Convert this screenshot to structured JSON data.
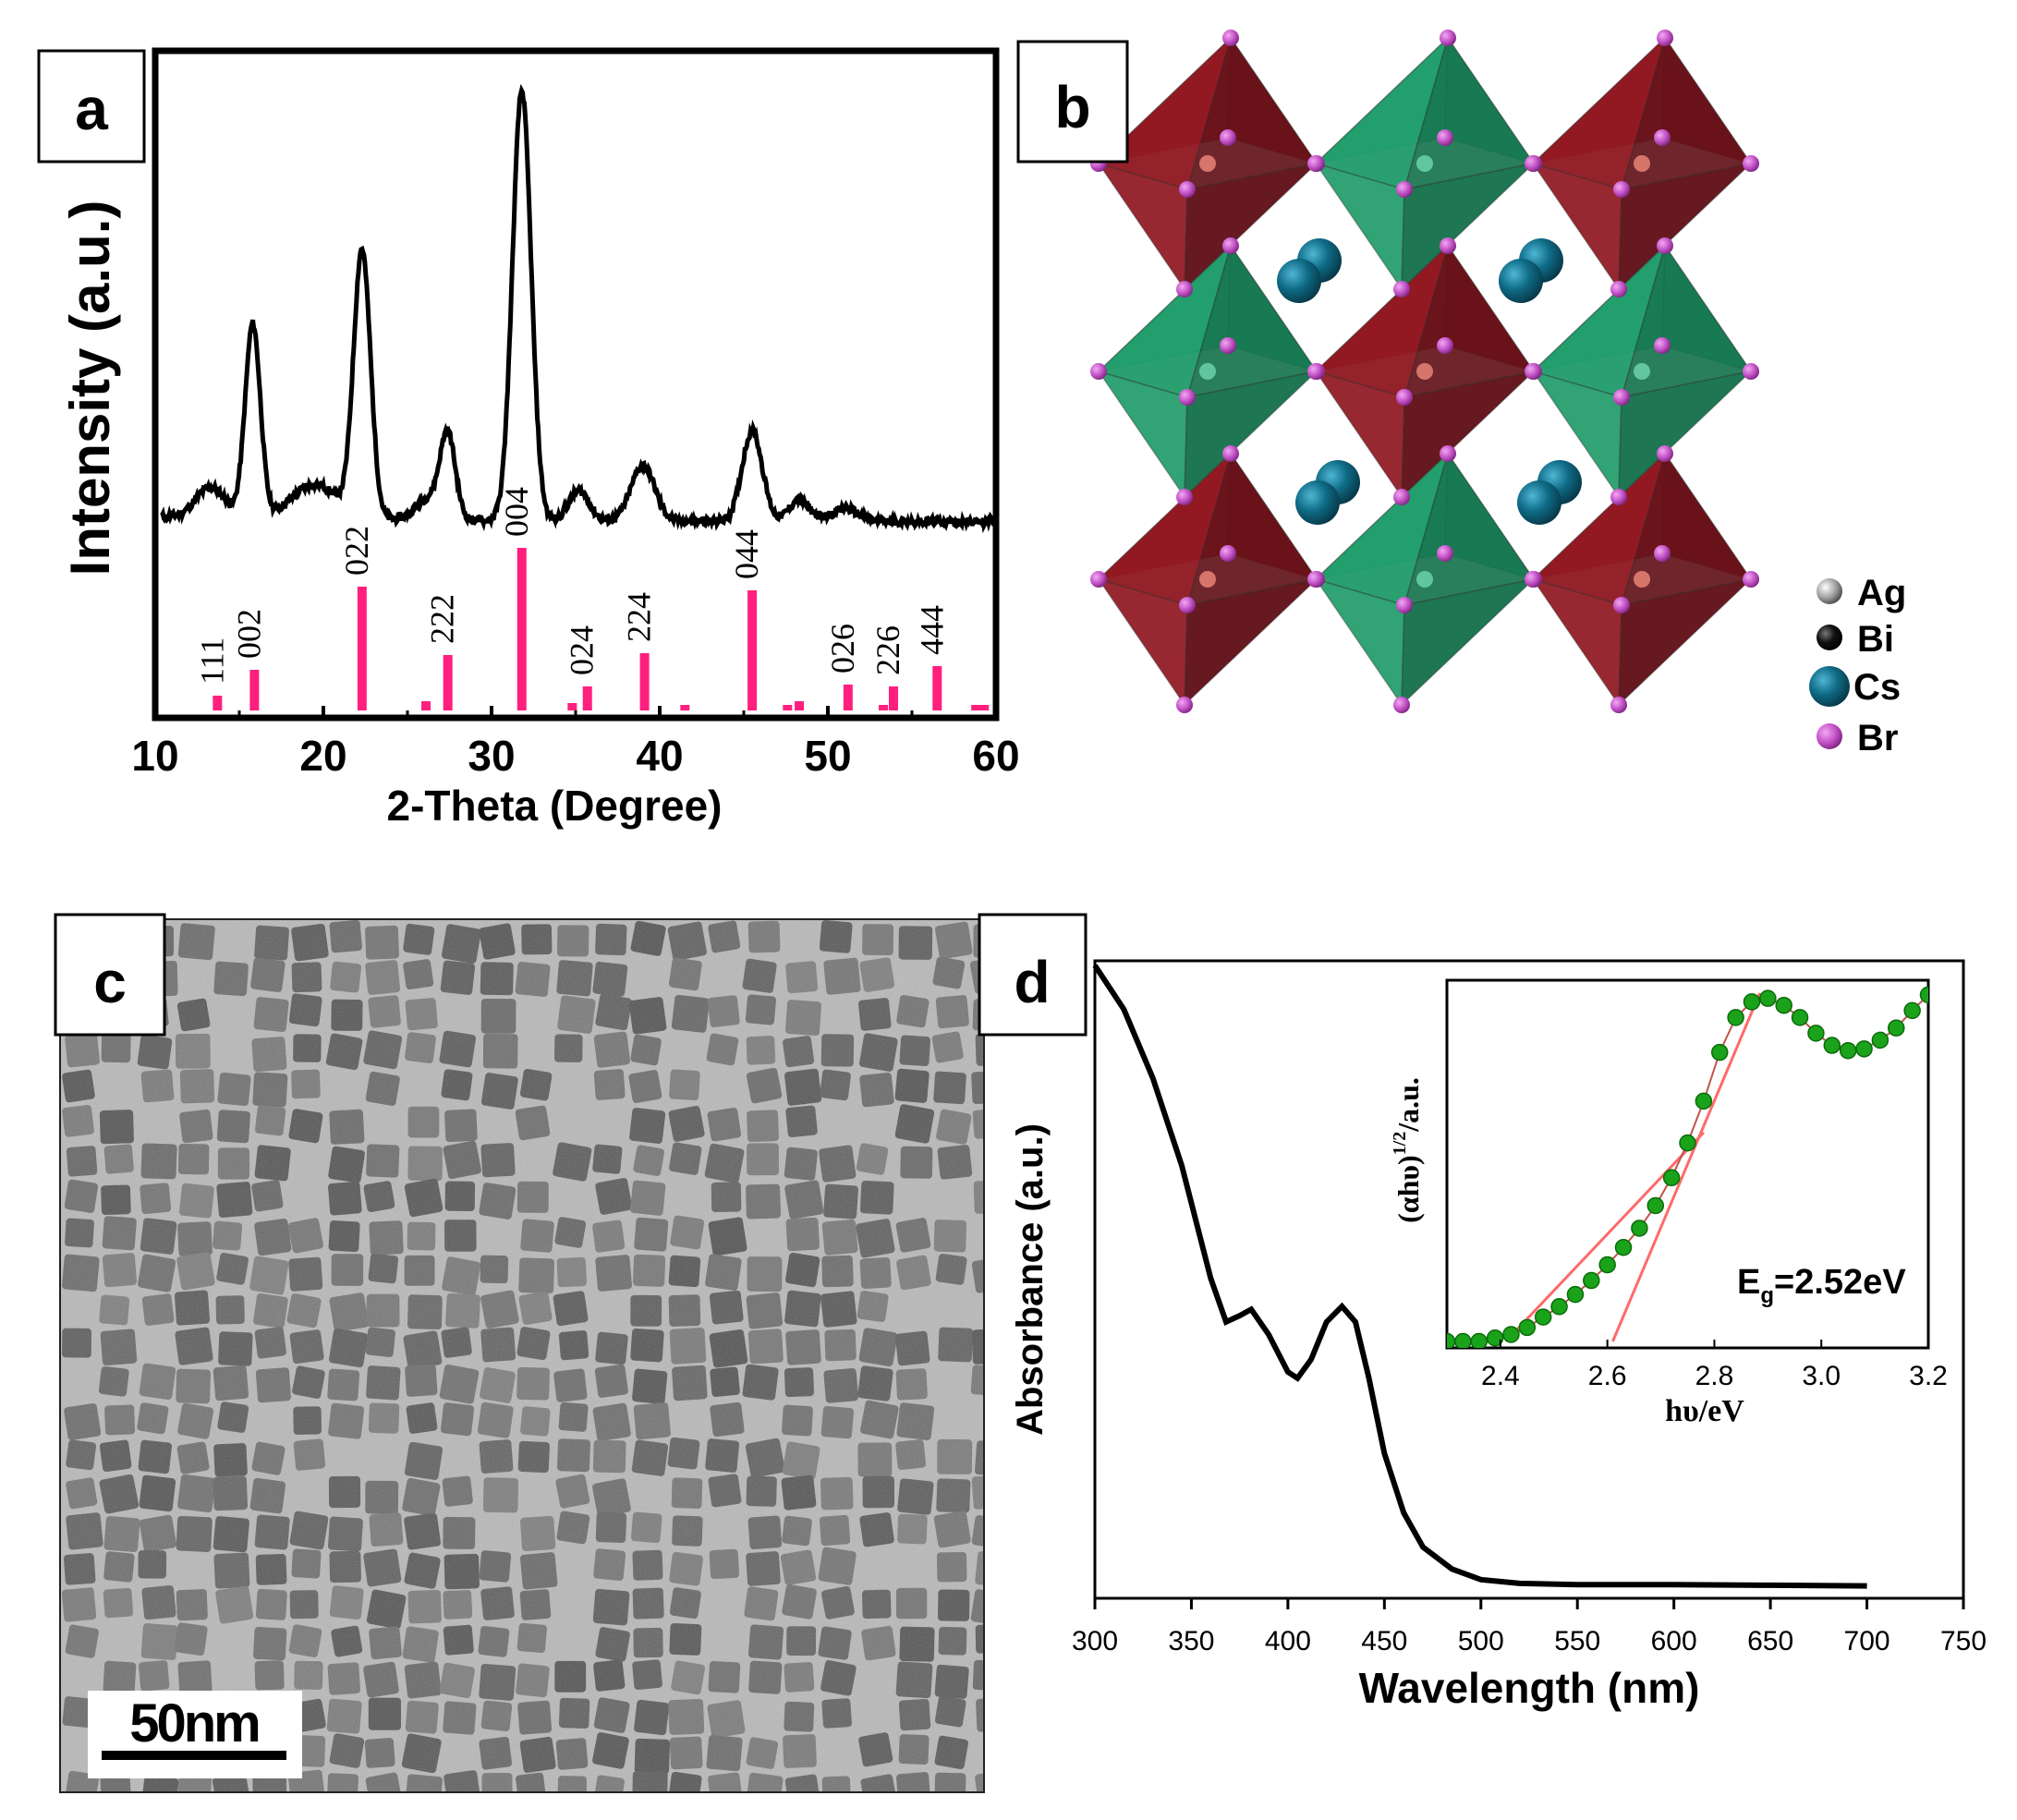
{
  "figure": {
    "panel_labels": [
      "a",
      "b",
      "c",
      "d"
    ]
  },
  "colors": {
    "reference_bars": "#ff1f7e",
    "octahedron_red": "#8e1620",
    "octahedron_green": "#1f9b68",
    "cs_atom": "#0f6b86",
    "br_atom": "#c04fc4",
    "fit_line": "#ff6a6a",
    "inset_points": "#1aa31a"
  },
  "chart_data": [
    {
      "panel": "a",
      "type": "line",
      "title": "",
      "xlabel": "2-Theta (Degree)",
      "ylabel": "Intensity (a.u.)",
      "xlim": [
        10,
        60
      ],
      "xticks": [
        10,
        20,
        30,
        40,
        50,
        60
      ],
      "pattern_peaks": [
        {
          "x": 13.3,
          "height": 0.07,
          "width": 0.9
        },
        {
          "x": 15.8,
          "height": 0.45,
          "width": 0.45
        },
        {
          "x": 19.5,
          "height": 0.08,
          "width": 1.4
        },
        {
          "x": 22.3,
          "height": 0.62,
          "width": 0.5
        },
        {
          "x": 26.3,
          "height": 0.05,
          "width": 0.8
        },
        {
          "x": 27.4,
          "height": 0.19,
          "width": 0.45
        },
        {
          "x": 31.8,
          "height": 1.0,
          "width": 0.55
        },
        {
          "x": 35.2,
          "height": 0.07,
          "width": 0.6
        },
        {
          "x": 39.0,
          "height": 0.13,
          "width": 0.7
        },
        {
          "x": 45.5,
          "height": 0.21,
          "width": 0.6
        },
        {
          "x": 48.3,
          "height": 0.05,
          "width": 0.6
        },
        {
          "x": 51.0,
          "height": 0.03,
          "width": 0.8
        }
      ],
      "reference_lines": [
        {
          "x": 13.7,
          "h": 0.08,
          "label": "111"
        },
        {
          "x": 15.9,
          "h": 0.22,
          "label": "002"
        },
        {
          "x": 22.3,
          "h": 0.67,
          "label": "022"
        },
        {
          "x": 26.1,
          "h": 0.05,
          "label": ""
        },
        {
          "x": 27.4,
          "h": 0.3,
          "label": "222"
        },
        {
          "x": 31.8,
          "h": 0.88,
          "label": "004"
        },
        {
          "x": 34.8,
          "h": 0.04,
          "label": ""
        },
        {
          "x": 35.7,
          "h": 0.13,
          "label": "024"
        },
        {
          "x": 39.1,
          "h": 0.31,
          "label": "224"
        },
        {
          "x": 41.5,
          "h": 0.03,
          "label": ""
        },
        {
          "x": 45.5,
          "h": 0.65,
          "label": "044"
        },
        {
          "x": 47.6,
          "h": 0.03,
          "label": ""
        },
        {
          "x": 48.3,
          "h": 0.05,
          "label": ""
        },
        {
          "x": 51.2,
          "h": 0.14,
          "label": "026"
        },
        {
          "x": 53.3,
          "h": 0.03,
          "label": ""
        },
        {
          "x": 53.9,
          "h": 0.13,
          "label": "226"
        },
        {
          "x": 56.5,
          "h": 0.24,
          "label": "444"
        },
        {
          "x": 58.8,
          "h": 0.03,
          "label": ""
        },
        {
          "x": 59.3,
          "h": 0.03,
          "label": ""
        }
      ]
    },
    {
      "panel": "d",
      "type": "line",
      "title": "",
      "xlabel": "Wavelength (nm)",
      "ylabel": "Absorbance (a.u.)",
      "xlim": [
        300,
        750
      ],
      "ylim": [
        0,
        1
      ],
      "xticks": [
        300,
        350,
        400,
        450,
        500,
        550,
        600,
        650,
        700,
        750
      ],
      "series": [
        {
          "name": "absorbance",
          "x": [
            300,
            315,
            330,
            345,
            360,
            368,
            375,
            381,
            390,
            400,
            405,
            412,
            420,
            428,
            435,
            442,
            450,
            460,
            470,
            485,
            500,
            520,
            550,
            600,
            650,
            700
          ],
          "y": [
            1.0,
            0.93,
            0.82,
            0.68,
            0.5,
            0.43,
            0.44,
            0.45,
            0.41,
            0.35,
            0.34,
            0.37,
            0.43,
            0.455,
            0.43,
            0.34,
            0.22,
            0.125,
            0.07,
            0.035,
            0.018,
            0.012,
            0.01,
            0.01,
            0.009,
            0.008
          ]
        }
      ],
      "inset": {
        "xlabel": "hυ/eV",
        "ylabel": "(αhυ)1/2/a.u.",
        "ylabel_parts": {
          "prefix": "(αhυ)",
          "sup": "1/2",
          "suffix": "/a.u."
        },
        "xlim": [
          2.3,
          3.2
        ],
        "ylim": [
          0,
          1
        ],
        "xticks": [
          2.4,
          2.6,
          2.8,
          3.0,
          3.2
        ],
        "annotation": {
          "text_pre": "E",
          "sub": "g",
          "text_post": "=2.52eV"
        },
        "points": {
          "x": [
            2.3,
            2.33,
            2.36,
            2.39,
            2.42,
            2.45,
            2.48,
            2.51,
            2.54,
            2.57,
            2.6,
            2.63,
            2.66,
            2.69,
            2.72,
            2.75,
            2.78,
            2.81,
            2.84,
            2.87,
            2.9,
            2.93,
            2.96,
            2.99,
            3.02,
            3.05,
            3.08,
            3.11,
            3.14,
            3.17,
            3.2
          ],
          "y": [
            0.0,
            0.0,
            0.0,
            0.01,
            0.02,
            0.04,
            0.07,
            0.1,
            0.135,
            0.175,
            0.22,
            0.27,
            0.325,
            0.39,
            0.47,
            0.57,
            0.69,
            0.83,
            0.93,
            0.975,
            0.985,
            0.965,
            0.93,
            0.885,
            0.85,
            0.835,
            0.84,
            0.865,
            0.9,
            0.95,
            0.995
          ]
        },
        "fit_lines": [
          {
            "x": [
              2.41,
              2.78
            ],
            "y": [
              0.0,
              0.6
            ]
          },
          {
            "x": [
              2.61,
              2.885
            ],
            "y": [
              0.0,
              1.0
            ]
          }
        ]
      }
    }
  ],
  "panel_b": {
    "legend": [
      {
        "label": "Ag",
        "color": "#9c9c9c"
      },
      {
        "label": "Bi",
        "color": "#111111"
      },
      {
        "label": "Cs",
        "color": "#0f6b86"
      },
      {
        "label": "Br",
        "color": "#c04fc4"
      }
    ]
  },
  "panel_c": {
    "scale_bar": "50nm"
  }
}
